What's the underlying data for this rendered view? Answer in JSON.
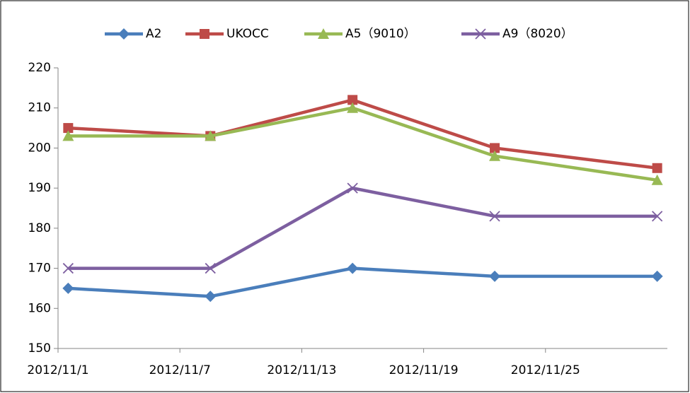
{
  "chart_data": {
    "type": "line",
    "x": [
      "2012-11-01",
      "2012-11-08",
      "2012-11-15",
      "2012-11-22",
      "2012-11-30"
    ],
    "series": [
      {
        "name": "A2",
        "color": "#4a7ebb",
        "marker": "diamond",
        "values": [
          165,
          163,
          170,
          168,
          168
        ]
      },
      {
        "name": "UKOCC",
        "color": "#be4b48",
        "marker": "square",
        "values": [
          205,
          203,
          212,
          200,
          195
        ]
      },
      {
        "name": "A5（9010）",
        "color": "#98b954",
        "marker": "triangle",
        "values": [
          203,
          203,
          210,
          198,
          192
        ]
      },
      {
        "name": "A9（8020）",
        "color": "#7d5fa0",
        "marker": "x",
        "values": [
          170,
          170,
          190,
          183,
          183
        ]
      }
    ],
    "xlim": [
      "2012-11-01",
      "2012-12-01"
    ],
    "xticks": [
      {
        "value": "2012-11-01",
        "label": "2012/11/1"
      },
      {
        "value": "2012-11-07",
        "label": "2012/11/7"
      },
      {
        "value": "2012-11-13",
        "label": "2012/11/13"
      },
      {
        "value": "2012-11-19",
        "label": "2012/11/19"
      },
      {
        "value": "2012-11-25",
        "label": "2012/11/25"
      }
    ],
    "ylim": [
      150,
      220
    ],
    "yticks": [
      150,
      160,
      170,
      180,
      190,
      200,
      210,
      220
    ],
    "grid": false,
    "legend": "top"
  }
}
